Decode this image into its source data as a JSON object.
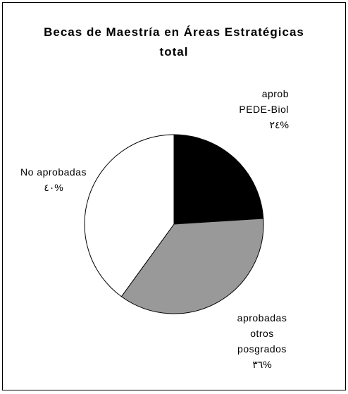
{
  "chart_data": {
    "type": "pie",
    "title": "Becas de Maestría en Áreas Estratégicas total",
    "categories": [
      "aprob PEDE-Biol",
      "aprobadas otros posgrados",
      "No aprobadas"
    ],
    "values": [
      24,
      36,
      40
    ],
    "value_labels": [
      "٢٤%",
      "٣٦%",
      "٤٠%"
    ],
    "colors": [
      "#000000",
      "#999999",
      "#ffffff"
    ]
  }
}
